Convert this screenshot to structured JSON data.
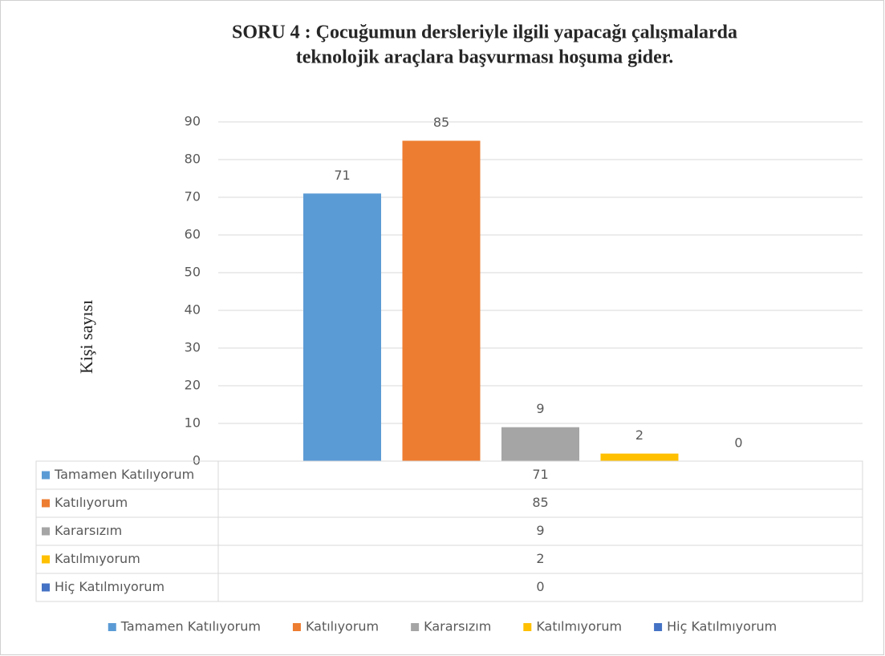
{
  "chart_data": {
    "type": "bar",
    "title": [
      "SORU 4 : Çocuğumun dersleriyle ilgili yapacağı çalışmalarda",
      "teknolojik araçlara başvurması hoşuma gider."
    ],
    "y_label": "Kişi sayısı",
    "series": [
      {
        "name": "Tamamen Katılıyorum",
        "color": "#5b9bd5",
        "values": [
          71
        ]
      },
      {
        "name": "Katılıyorum",
        "color": "#ed7d31",
        "values": [
          85
        ]
      },
      {
        "name": "Kararsızım",
        "color": "#a5a5a5",
        "values": [
          9
        ]
      },
      {
        "name": "Katılmıyorum",
        "color": "#ffc000",
        "values": [
          2
        ]
      },
      {
        "name": "Hiç Katılmıyorum",
        "color": "#4472c4",
        "values": [
          0
        ]
      }
    ],
    "ylim": [
      0,
      90
    ],
    "yticks": [
      0,
      10,
      20,
      30,
      40,
      50,
      60,
      70,
      80,
      90
    ],
    "grid": true,
    "legend": "bottom",
    "data_table": true
  }
}
